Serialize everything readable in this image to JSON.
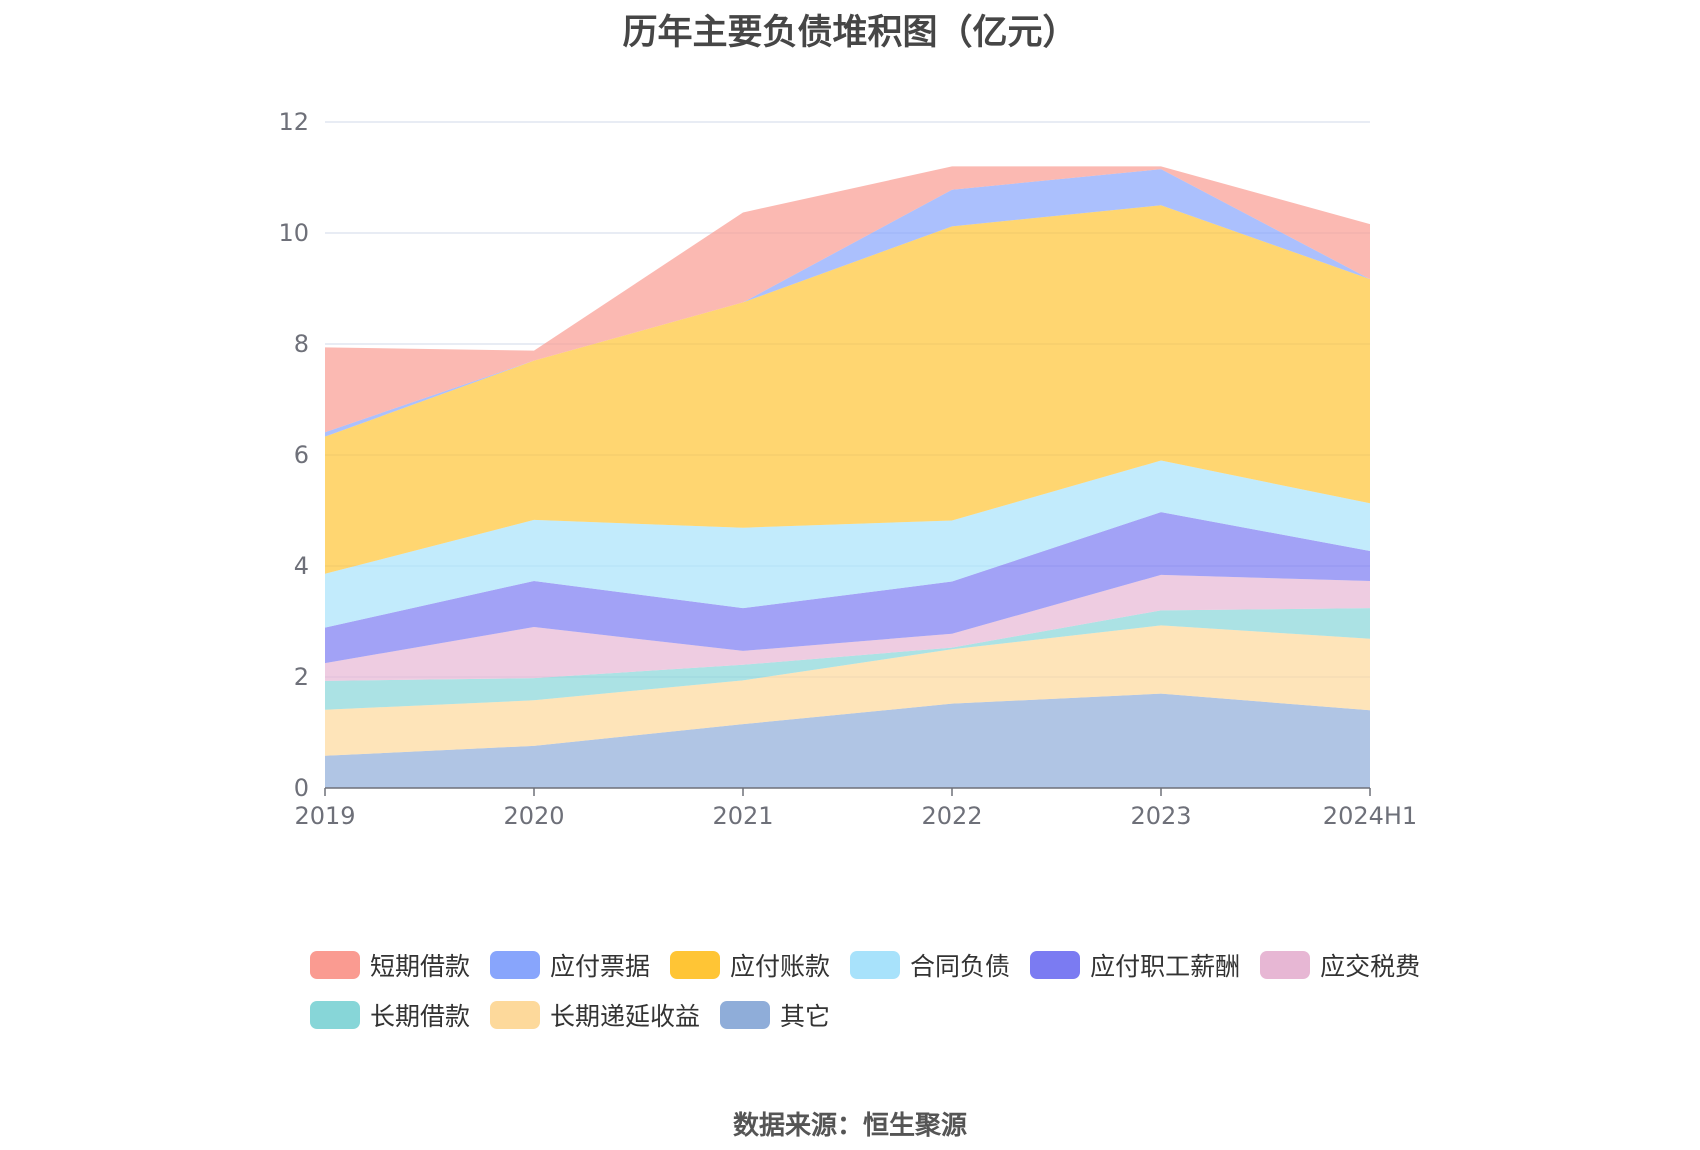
{
  "chart_data": {
    "type": "area",
    "stacked": true,
    "title": "历年主要负债堆积图（亿元）",
    "categories": [
      "2019",
      "2020",
      "2021",
      "2022",
      "2023",
      "2024H1"
    ],
    "xlabel": "",
    "ylabel": "",
    "ylim": [
      0,
      12
    ],
    "yticks": [
      "0",
      "2",
      "4",
      "6",
      "8",
      "10",
      "12"
    ],
    "grid": true,
    "legend_position": "bottom",
    "series": [
      {
        "name": "其它",
        "color": "#8fadd9",
        "values": [
          0.58,
          0.76,
          1.15,
          1.52,
          1.7,
          1.4
        ]
      },
      {
        "name": "长期递延收益",
        "color": "#fdd99b",
        "values": [
          0.83,
          0.82,
          0.79,
          0.98,
          1.23,
          1.29
        ]
      },
      {
        "name": "长期借款",
        "color": "#87d6d8",
        "values": [
          0.52,
          0.4,
          0.28,
          0.03,
          0.27,
          0.55
        ]
      },
      {
        "name": "应交税费",
        "color": "#e7b7d4",
        "values": [
          0.32,
          0.92,
          0.25,
          0.25,
          0.64,
          0.49
        ]
      },
      {
        "name": "应付职工薪酬",
        "color": "#7b7bf2",
        "values": [
          0.64,
          0.83,
          0.77,
          0.94,
          1.13,
          0.54
        ]
      },
      {
        "name": "合同负债",
        "color": "#a8e2fb",
        "values": [
          0.97,
          1.1,
          1.45,
          1.1,
          0.93,
          0.86
        ]
      },
      {
        "name": "应付账款",
        "color": "#ffc535",
        "values": [
          2.47,
          2.87,
          4.06,
          5.3,
          4.6,
          4.04
        ]
      },
      {
        "name": "应付票据",
        "color": "#88a5fc",
        "values": [
          0.08,
          0.0,
          0.0,
          0.66,
          0.65,
          0.0
        ]
      },
      {
        "name": "短期借款",
        "color": "#fa9b91",
        "values": [
          1.53,
          0.18,
          1.62,
          0.42,
          0.05,
          0.99
        ]
      }
    ],
    "legend_order": [
      "短期借款",
      "应付票据",
      "应付账款",
      "合同负债",
      "应付职工薪酬",
      "应交税费",
      "长期借款",
      "长期递延收益",
      "其它"
    ]
  },
  "source": "数据来源：恒生聚源"
}
